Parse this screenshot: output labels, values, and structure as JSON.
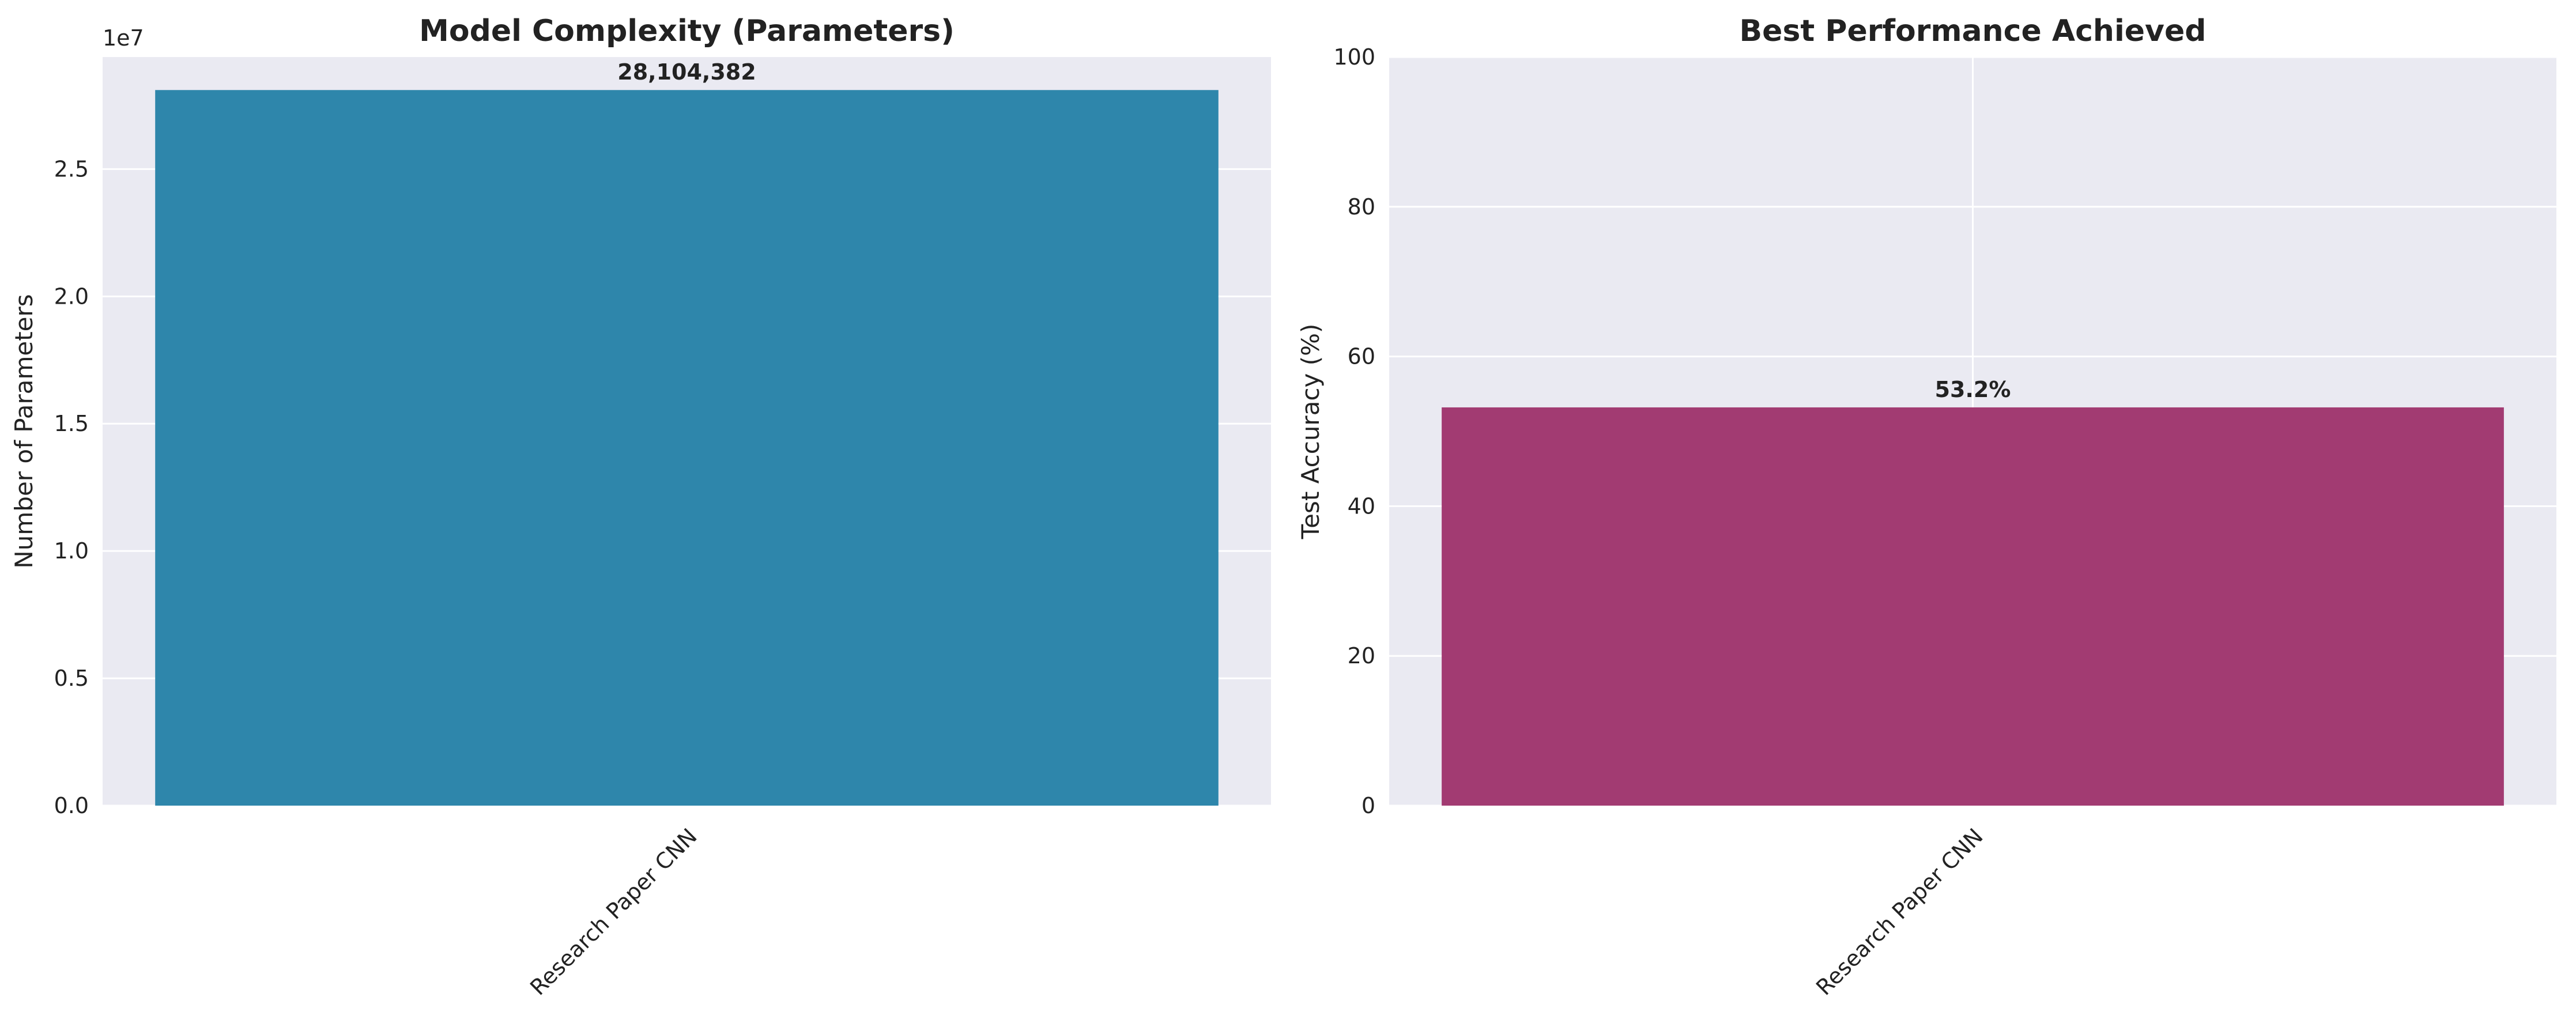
{
  "chart_data": [
    {
      "type": "bar",
      "title": "Model Complexity (Parameters)",
      "xlabel": "",
      "ylabel": "Number of Parameters",
      "categories": [
        "Research Paper CNN"
      ],
      "values": [
        28104382
      ],
      "value_labels": [
        "28,104,382"
      ],
      "ylim": [
        0,
        29400000
      ],
      "yticks": [
        0,
        5000000,
        10000000,
        15000000,
        20000000,
        25000000
      ],
      "ytick_labels": [
        "0.0",
        "0.5",
        "1.0",
        "1.5",
        "2.0",
        "2.5"
      ],
      "offset_label": "1e7",
      "grid": "y",
      "color": "#2e86ab"
    },
    {
      "type": "bar",
      "title": "Best Performance Achieved",
      "xlabel": "",
      "ylabel": "Test Accuracy (%)",
      "categories": [
        "Research Paper CNN"
      ],
      "values": [
        53.2
      ],
      "value_labels": [
        "53.2%"
      ],
      "ylim": [
        0,
        100
      ],
      "yticks": [
        0,
        20,
        40,
        60,
        80,
        100
      ],
      "ytick_labels": [
        "0",
        "20",
        "40",
        "60",
        "80",
        "100"
      ],
      "grid": "both",
      "color": "#a23b72"
    }
  ]
}
